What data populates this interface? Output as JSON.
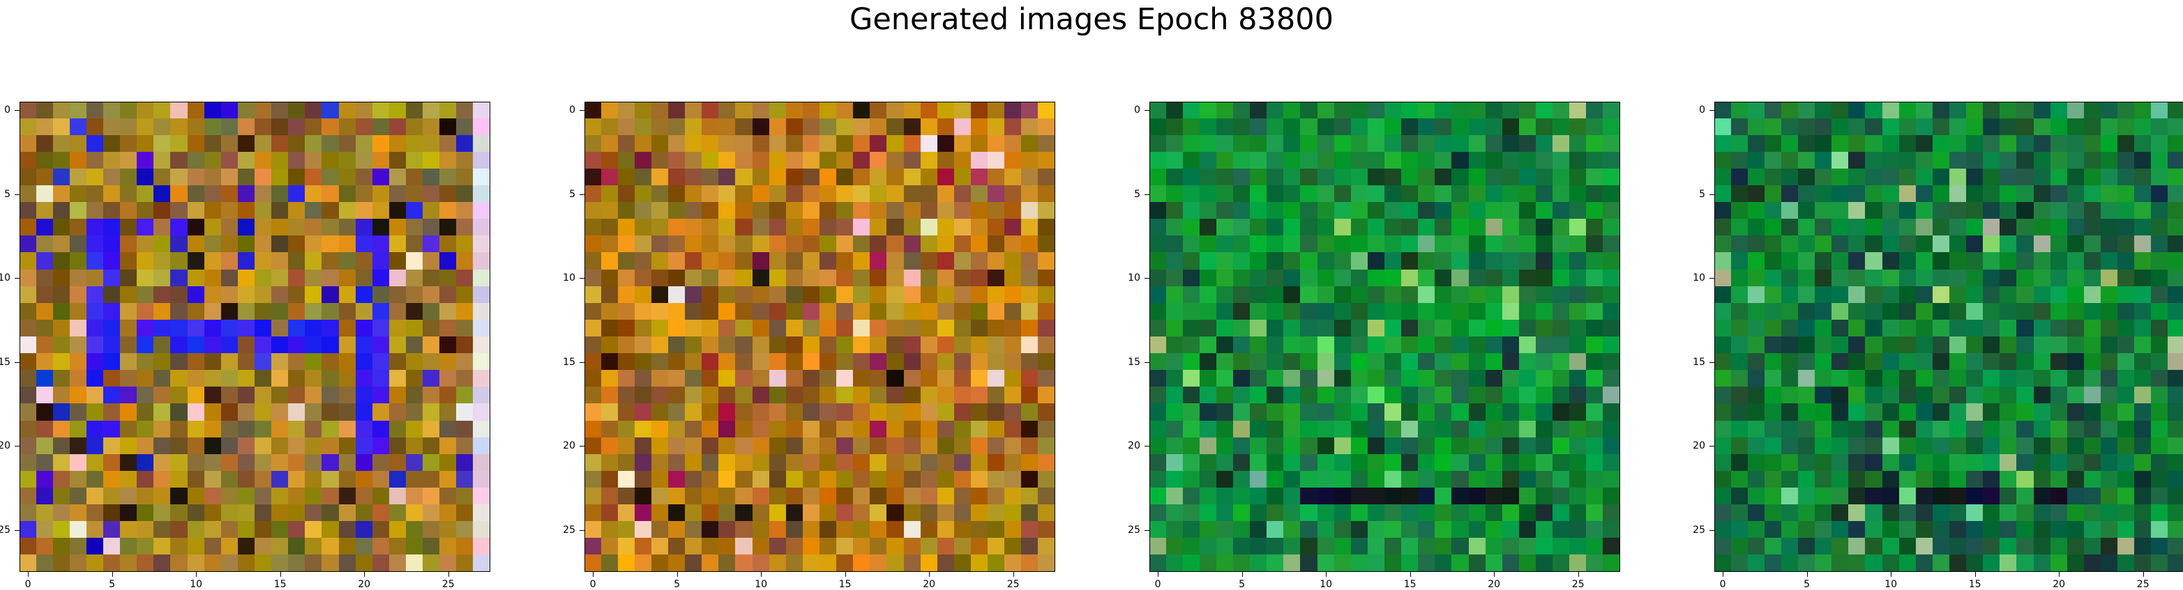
{
  "figure": {
    "title": "Generated images Epoch 83800"
  },
  "panels": [
    {
      "id": "image-1",
      "palette": "warm",
      "base": "#a07a18",
      "accent": "#3020f0"
    },
    {
      "id": "image-2",
      "palette": "warm",
      "base": "#b07a10",
      "accent": "#8a2a60"
    },
    {
      "id": "image-3",
      "palette": "green",
      "base": "#0a8a3a",
      "accent": "#0a2a18"
    },
    {
      "id": "image-4",
      "palette": "green",
      "base": "#0a7a3a",
      "accent": "#0a2a20"
    }
  ],
  "axes": {
    "ticks": [
      "0",
      "5",
      "10",
      "15",
      "20",
      "25"
    ]
  }
}
